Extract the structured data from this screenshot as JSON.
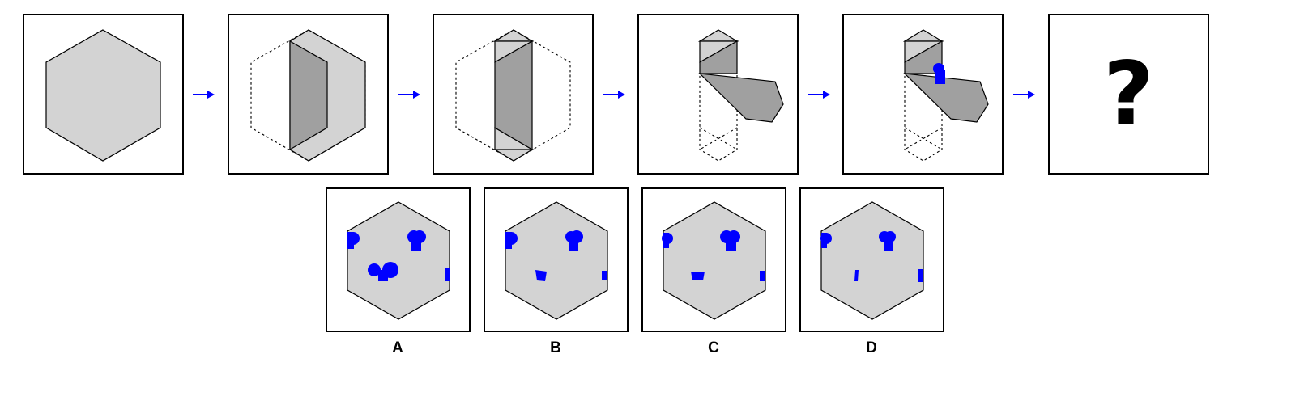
{
  "colors": {
    "face": "#d3d3d3",
    "fold": "#a0a0a0",
    "mark": "#0000ff",
    "arrow": "#0000ff",
    "outline": "#000000"
  },
  "sequence": {
    "arrow_icon": "right-arrow-icon",
    "question_mark": "?"
  },
  "options": [
    {
      "label": "A"
    },
    {
      "label": "B"
    },
    {
      "label": "C"
    },
    {
      "label": "D"
    }
  ]
}
